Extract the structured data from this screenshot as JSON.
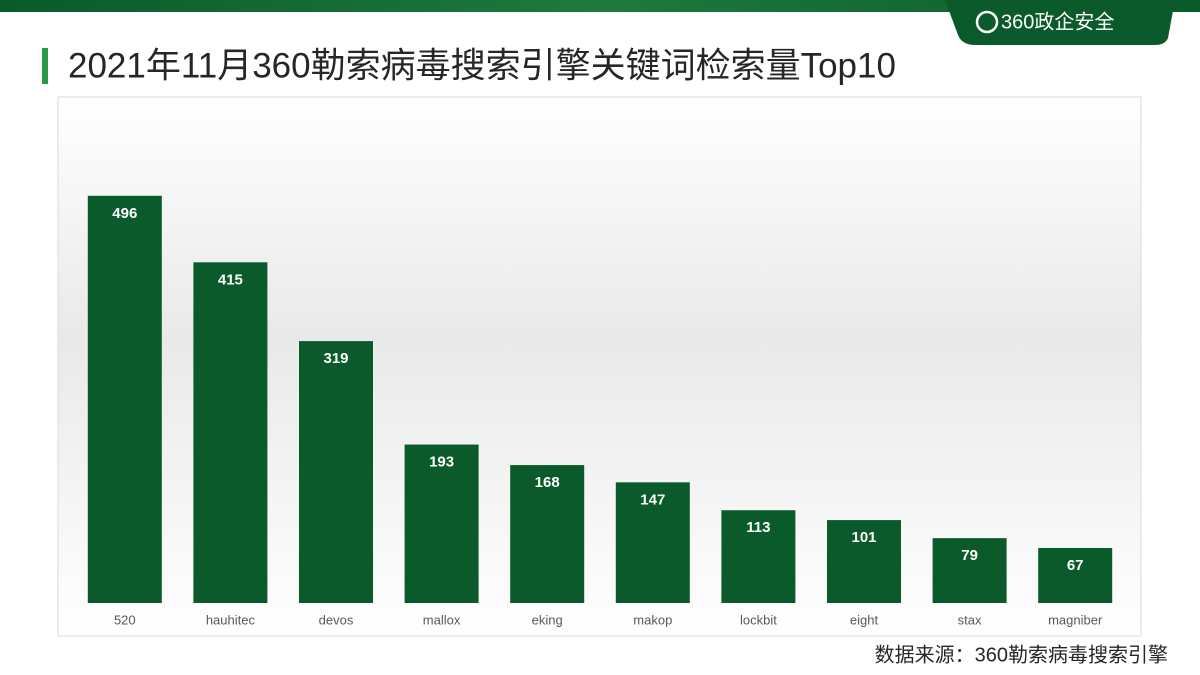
{
  "brand": "360政企安全",
  "chart_data": {
    "type": "bar",
    "title": "2021年11月360勒索病毒搜索引擎关键词检索量Top10",
    "categories": [
      "520",
      "hauhitec",
      "devos",
      "mallox",
      "eking",
      "makop",
      "lockbit",
      "eight",
      "stax",
      "magniber"
    ],
    "values": [
      496,
      415,
      319,
      193,
      168,
      147,
      113,
      101,
      79,
      67
    ],
    "color": "#0b5a2c",
    "ylim": [
      0,
      620
    ],
    "source": "数据来源：360勒索病毒搜索引擎"
  }
}
